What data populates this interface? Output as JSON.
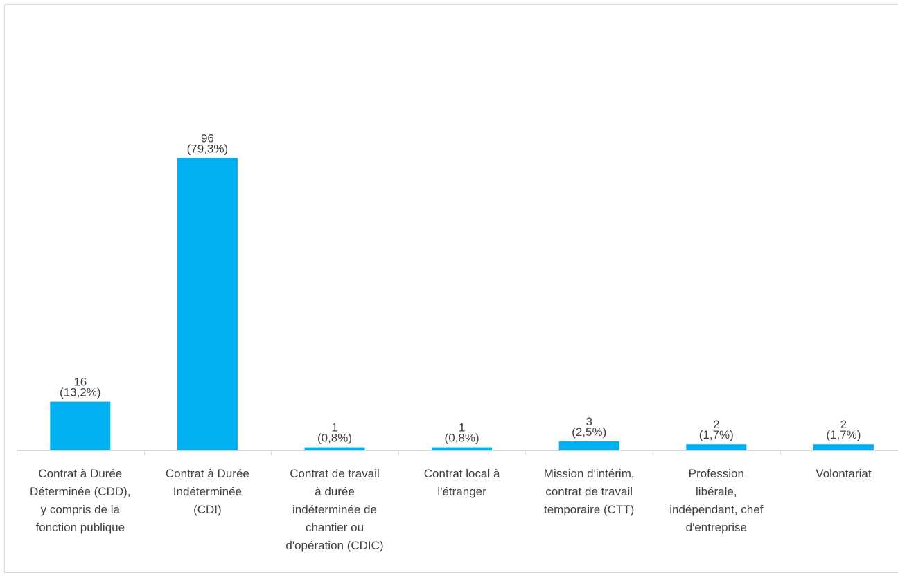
{
  "chart_data": {
    "type": "bar",
    "categories": [
      "Contrat à Durée\nDéterminée (CDD),\ny compris de la\nfonction publique",
      "Contrat à Durée\nIndéterminée\n(CDI)",
      "Contrat de travail\nà durée\nindéterminée de\nchantier ou\nd'opération (CDIC)",
      "Contrat local à\nl'étranger",
      "Mission d'intérim,\ncontrat de travail\ntemporaire (CTT)",
      "Profession\nlibérale,\nindépendant, chef\nd'entreprise",
      "Volontariat"
    ],
    "values": [
      16,
      96,
      1,
      1,
      3,
      2,
      2
    ],
    "value_labels": [
      "16",
      "96",
      "1",
      "1",
      "3",
      "2",
      "2"
    ],
    "percent_labels": [
      "(13,2%)",
      "(79,3%)",
      "(0,8%)",
      "(0,8%)",
      "(2,5%)",
      "(1,7%)",
      "(1,7%)"
    ],
    "title": "",
    "xlabel": "",
    "ylabel": "",
    "ylim": [
      0,
      120
    ],
    "grid": false,
    "legend": "none",
    "bar_color": "#00b0f0",
    "axis_color": "#d9d9d9",
    "label_color": "#404040"
  }
}
